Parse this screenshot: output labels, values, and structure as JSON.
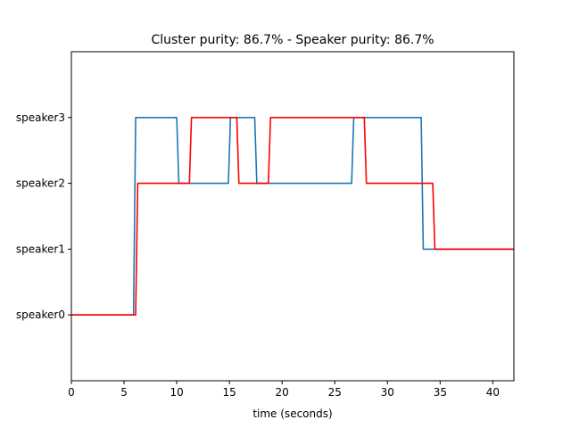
{
  "chart_data": {
    "type": "line",
    "title": "Cluster purity: 86.7% - Speaker purity: 86.7%",
    "xlabel": "time (seconds)",
    "ylabel": "",
    "xlim": [
      0,
      42
    ],
    "ylim": [
      -1,
      4
    ],
    "xticks": [
      0,
      5,
      10,
      15,
      20,
      25,
      30,
      35,
      40
    ],
    "xtick_labels": [
      "0",
      "5",
      "10",
      "15",
      "20",
      "25",
      "30",
      "35",
      "40"
    ],
    "yticks": [
      0,
      1,
      2,
      3
    ],
    "ytick_labels": [
      "speaker0",
      "speaker1",
      "speaker2",
      "speaker3"
    ],
    "grid": false,
    "legend": "none",
    "series": [
      {
        "color": "#1f77b4",
        "x": [
          0,
          5.9,
          6.1,
          10.0,
          10.2,
          14.9,
          15.1,
          17.4,
          17.6,
          26.6,
          26.8,
          33.2,
          33.4,
          42
        ],
        "y": [
          0,
          0,
          3,
          3,
          2,
          2,
          3,
          3,
          2,
          2,
          3,
          3,
          1,
          1
        ]
      },
      {
        "color": "#ff0000",
        "x": [
          0,
          6.1,
          6.3,
          11.2,
          11.4,
          15.7,
          15.9,
          18.7,
          18.9,
          27.8,
          28.0,
          34.3,
          34.5,
          42
        ],
        "y": [
          0,
          0,
          2,
          2,
          3,
          3,
          2,
          2,
          3,
          3,
          2,
          2,
          1,
          1
        ]
      }
    ]
  }
}
